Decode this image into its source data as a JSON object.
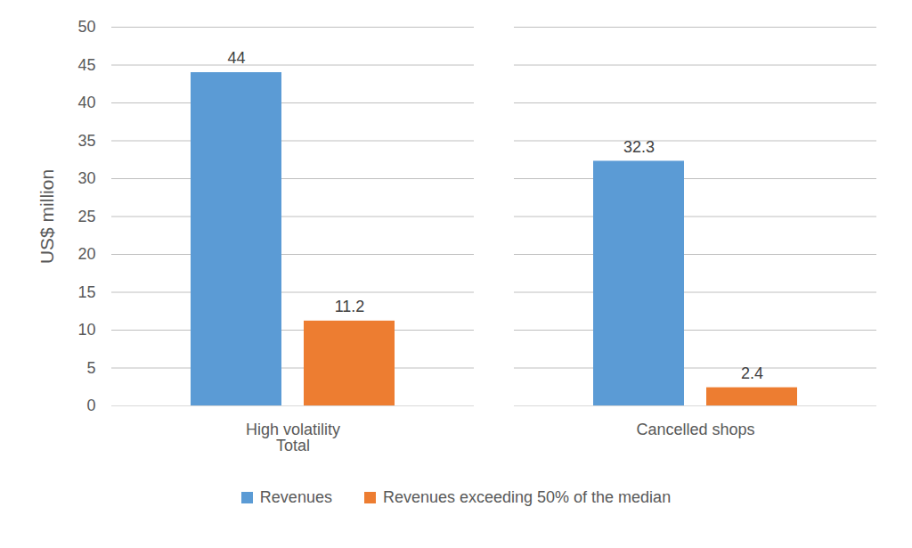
{
  "chart_data": {
    "type": "bar",
    "categories": [
      "High volatility\nTotal",
      "Cancelled shops"
    ],
    "series": [
      {
        "name": "Revenues",
        "color": "#5b9bd5",
        "values": [
          44,
          32.3
        ]
      },
      {
        "name": "Revenues exceeding 50% of the median",
        "color": "#ed7d31",
        "values": [
          11.2,
          2.4
        ]
      }
    ],
    "y_label": "US$ million",
    "ylim": [
      0,
      50
    ],
    "yticks": [
      0,
      5,
      10,
      15,
      20,
      25,
      30,
      35,
      40,
      45,
      50
    ],
    "grid": true,
    "data_labels": true,
    "legend": "bottom"
  }
}
